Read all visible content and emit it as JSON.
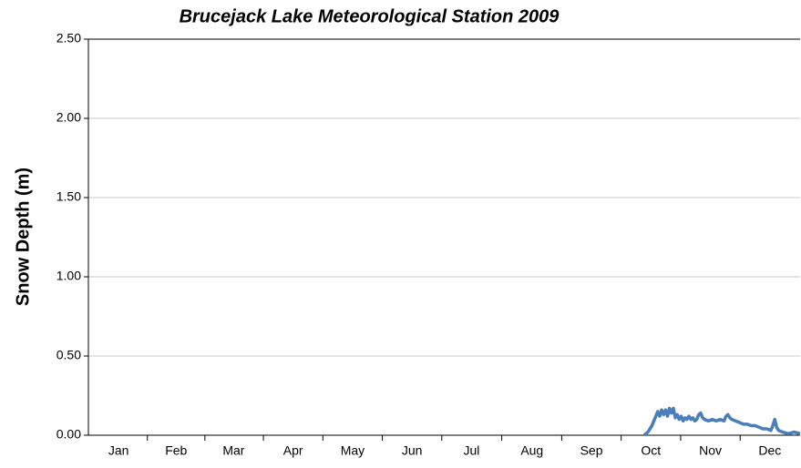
{
  "chart_data": {
    "type": "line",
    "title": "Brucejack Lake Meteorological Station 2009",
    "y_label": "Snow Depth (m)",
    "xlim": [
      0,
      365
    ],
    "xticks": [
      {
        "value": 15.5,
        "label": "Jan"
      },
      {
        "value": 45,
        "label": "Feb"
      },
      {
        "value": 74.5,
        "label": "Mar"
      },
      {
        "value": 105,
        "label": "Apr"
      },
      {
        "value": 135.5,
        "label": "May"
      },
      {
        "value": 166,
        "label": "Jun"
      },
      {
        "value": 196.5,
        "label": "Jul"
      },
      {
        "value": 227.5,
        "label": "Aug"
      },
      {
        "value": 258,
        "label": "Sep"
      },
      {
        "value": 288.5,
        "label": "Oct"
      },
      {
        "value": 319,
        "label": "Nov"
      },
      {
        "value": 349.5,
        "label": "Dec"
      }
    ],
    "ylim": [
      0,
      2.5
    ],
    "yticks": [
      {
        "value": 0,
        "label": "0.00"
      },
      {
        "value": 0.5,
        "label": "0.50"
      },
      {
        "value": 1,
        "label": "1.00"
      },
      {
        "value": 1.5,
        "label": "1.50"
      },
      {
        "value": 2,
        "label": "2.00"
      },
      {
        "value": 2.5,
        "label": "2.50"
      }
    ],
    "grid": true,
    "series": [
      {
        "color": "#4a7ebb",
        "x": [
          285,
          287,
          289,
          291,
          292,
          293,
          294,
          295,
          296,
          297,
          298,
          299,
          300,
          301,
          302,
          303,
          304,
          305,
          306,
          307,
          308,
          309,
          310,
          311,
          312,
          313,
          314,
          315,
          316,
          318,
          320,
          322,
          324,
          326,
          327,
          328,
          329,
          330,
          332,
          334,
          336,
          338,
          340,
          342,
          344,
          346,
          348,
          350,
          351,
          352,
          353,
          354,
          356,
          359,
          362,
          365
        ],
        "values": [
          0.0,
          0.02,
          0.06,
          0.12,
          0.15,
          0.12,
          0.16,
          0.13,
          0.16,
          0.12,
          0.17,
          0.14,
          0.17,
          0.11,
          0.13,
          0.1,
          0.12,
          0.09,
          0.11,
          0.1,
          0.12,
          0.1,
          0.11,
          0.09,
          0.1,
          0.13,
          0.14,
          0.11,
          0.1,
          0.09,
          0.1,
          0.09,
          0.1,
          0.09,
          0.12,
          0.13,
          0.11,
          0.1,
          0.09,
          0.08,
          0.07,
          0.07,
          0.06,
          0.06,
          0.05,
          0.04,
          0.04,
          0.03,
          0.06,
          0.1,
          0.05,
          0.03,
          0.02,
          0.01,
          0.02,
          0.01
        ]
      }
    ]
  }
}
